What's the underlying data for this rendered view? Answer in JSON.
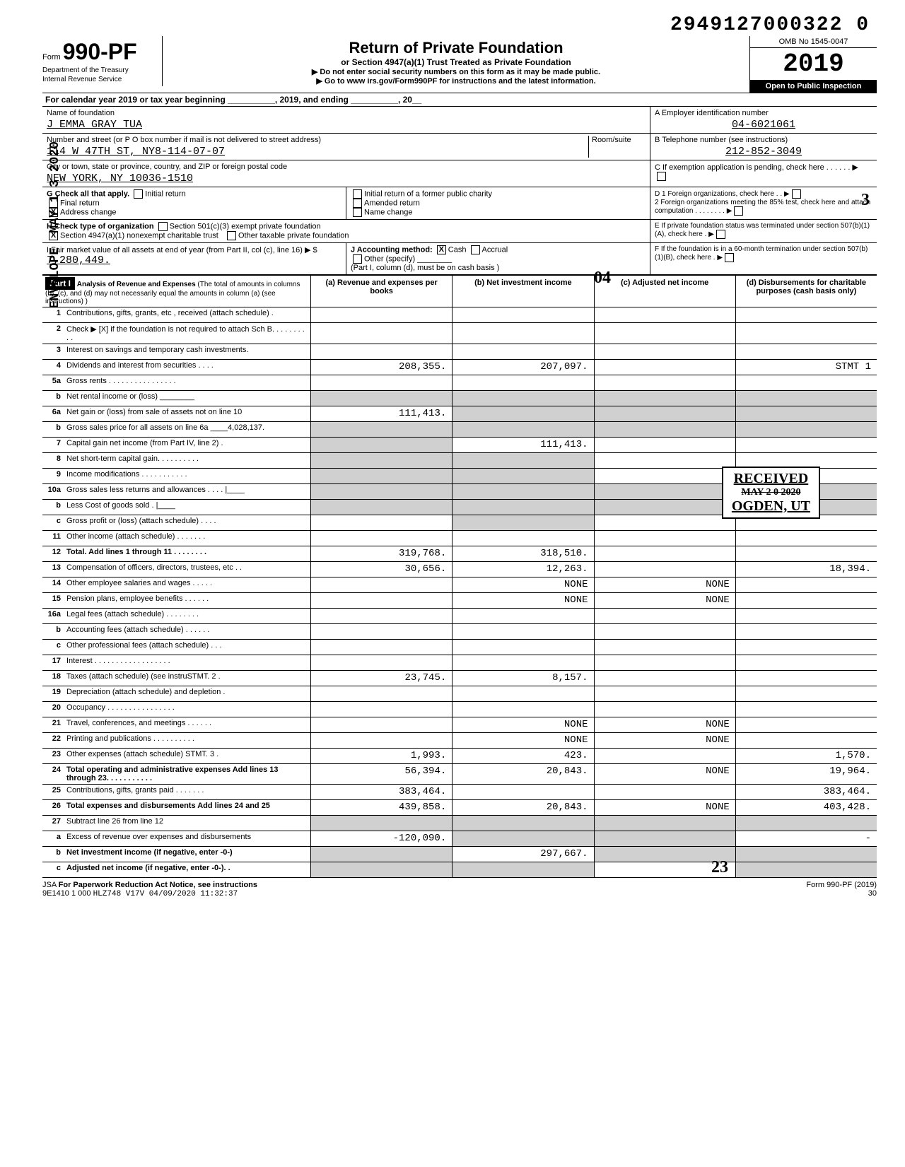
{
  "dln": "2949127000322 0",
  "form": {
    "prefix": "Form",
    "number": "990-PF",
    "dept1": "Department of the Treasury",
    "dept2": "Internal Revenue Service"
  },
  "title": {
    "main": "Return of Private Foundation",
    "sub1": "or Section 4947(a)(1) Trust Treated as Private Foundation",
    "sub2": "▶ Do not enter social security numbers on this form as it may be made public.",
    "sub3": "▶ Go to www irs.gov/Form990PF for instructions and the latest information."
  },
  "omb": "OMB No 1545-0047",
  "year": "2019",
  "inspection": "Open to Public Inspection",
  "cal_year": "For calendar year 2019 or tax year beginning __________, 2019, and ending __________, 20__",
  "foundation": {
    "name_label": "Name of foundation",
    "name": "J EMMA GRAY TUA",
    "addr_label": "Number and street (or P O box number if mail is not delivered to street address)",
    "room_label": "Room/suite",
    "addr": "114 W 47TH ST, NY8-114-07-07",
    "city_label": "City or town, state or province, country, and ZIP or foreign postal code",
    "city": "NEW YORK, NY 10036-1510"
  },
  "ein": {
    "label": "A  Employer identification number",
    "value": "04-6021061"
  },
  "phone": {
    "label": "B  Telephone number (see instructions)",
    "value": "212-852-3049"
  },
  "exemption": {
    "label": "C  If exemption application is pending, check here . . . . . . ▶"
  },
  "checks": {
    "g_label": "G Check all that apply.",
    "initial": "Initial return",
    "final": "Final return",
    "address": "Address change",
    "address_checked": "X",
    "initial_former": "Initial return of a former public charity",
    "amended": "Amended return",
    "name_change": "Name change",
    "h_label": "H Check type of organization",
    "sec501": "Section 501(c)(3) exempt private foundation",
    "sec4947": "Section 4947(a)(1) nonexempt charitable trust",
    "sec4947_checked": "X",
    "other_tax": "Other taxable private foundation",
    "i_label": "I  Fair market value of all assets at end of year (from Part II, col (c), line 16) ▶ $",
    "i_value": "7,280,449.",
    "j_label": "J Accounting method:",
    "cash": "Cash",
    "cash_checked": "X",
    "accrual": "Accrual",
    "other_spec": "Other (specify) ________",
    "j_note": "(Part I, column (d), must be on cash basis )",
    "d1": "D  1 Foreign organizations, check here . . ▶",
    "d2": "2 Foreign organizations meeting the 85% test, check here and attach computation . . . . . . . . ▶",
    "e": "E  If private foundation status was terminated under section 507(b)(1)(A), check here . ▶",
    "f": "F  If the foundation is in a 60-month termination under section 507(b)(1)(B), check here . ▶"
  },
  "part1": {
    "label": "Part I",
    "title": "Analysis of Revenue and Expenses",
    "note": "(The total of amounts in columns (b), (c), and (d) may not necessarily equal the amounts in column (a) (see instructions) )",
    "col_a": "(a) Revenue and expenses per books",
    "col_b": "(b) Net investment income",
    "col_c": "(c) Adjusted net income",
    "col_d": "(d) Disbursements for charitable purposes (cash basis only)"
  },
  "rows": [
    {
      "n": "1",
      "label": "Contributions, gifts, grants, etc , received (attach schedule) .",
      "a": "",
      "b": "",
      "c": "",
      "d": ""
    },
    {
      "n": "2",
      "label": "Check ▶ [X] if the foundation is not required to attach Sch B. . . . . . . . . .",
      "a": "",
      "b": "",
      "c": "",
      "d": ""
    },
    {
      "n": "3",
      "label": "Interest on savings and temporary cash investments.",
      "a": "",
      "b": "",
      "c": "",
      "d": ""
    },
    {
      "n": "4",
      "label": "Dividends and interest from securities . . . .",
      "a": "208,355.",
      "b": "207,097.",
      "c": "",
      "d": "STMT 1"
    },
    {
      "n": "5a",
      "label": "Gross rents . . . . . . . . . . . . . . . .",
      "a": "",
      "b": "",
      "c": "",
      "d": ""
    },
    {
      "n": "b",
      "label": "Net rental income or (loss) ________",
      "a": "",
      "b": "",
      "c": "",
      "d": "",
      "shaded_all": true
    },
    {
      "n": "6a",
      "label": "Net gain or (loss) from sale of assets not on line 10",
      "a": "111,413.",
      "b": "",
      "c": "",
      "d": "",
      "shaded_bcd": true
    },
    {
      "n": "b",
      "label": "Gross sales price for all assets on line 6a ____4,028,137.",
      "a": "",
      "b": "",
      "c": "",
      "d": "",
      "shaded_all": true
    },
    {
      "n": "7",
      "label": "Capital gain net income (from Part IV, line 2) .",
      "a": "",
      "b": "111,413.",
      "c": "",
      "d": "",
      "shaded_a": true
    },
    {
      "n": "8",
      "label": "Net short-term capital gain. . . . . . . . . .",
      "a": "",
      "b": "",
      "c": "",
      "d": "",
      "shaded_ab": true
    },
    {
      "n": "9",
      "label": "Income modifications . . . . . . . . . . .",
      "a": "",
      "b": "",
      "c": "",
      "d": "",
      "shaded_ab": true
    },
    {
      "n": "10a",
      "label": "Gross sales less returns and allowances . . . . |____",
      "a": "",
      "b": "",
      "c": "",
      "d": "",
      "shaded_all": true
    },
    {
      "n": "b",
      "label": "Less Cost of goods sold . |____",
      "a": "",
      "b": "",
      "c": "",
      "d": "",
      "shaded_all": true
    },
    {
      "n": "c",
      "label": "Gross profit or (loss) (attach schedule) . . . .",
      "a": "",
      "b": "",
      "c": "",
      "d": "",
      "shaded_b": true
    },
    {
      "n": "11",
      "label": "Other income (attach schedule) . . . . . . .",
      "a": "",
      "b": "",
      "c": "",
      "d": ""
    },
    {
      "n": "12",
      "label": "Total. Add lines 1 through 11 . . . . . . . .",
      "a": "319,768.",
      "b": "318,510.",
      "c": "",
      "d": "",
      "bold": true
    },
    {
      "n": "13",
      "label": "Compensation of officers, directors, trustees, etc . .",
      "a": "30,656.",
      "b": "12,263.",
      "c": "",
      "d": "18,394."
    },
    {
      "n": "14",
      "label": "Other employee salaries and wages . . . . .",
      "a": "",
      "b": "NONE",
      "c": "NONE",
      "d": ""
    },
    {
      "n": "15",
      "label": "Pension plans, employee benefits . . . . . .",
      "a": "",
      "b": "NONE",
      "c": "NONE",
      "d": ""
    },
    {
      "n": "16a",
      "label": "Legal fees (attach schedule) . . . . . . . .",
      "a": "",
      "b": "",
      "c": "",
      "d": ""
    },
    {
      "n": "b",
      "label": "Accounting fees (attach schedule) . . . . . .",
      "a": "",
      "b": "",
      "c": "",
      "d": ""
    },
    {
      "n": "c",
      "label": "Other professional fees (attach schedule) . . .",
      "a": "",
      "b": "",
      "c": "",
      "d": ""
    },
    {
      "n": "17",
      "label": "Interest . . . . . . . . . . . . . . . . . .",
      "a": "",
      "b": "",
      "c": "",
      "d": ""
    },
    {
      "n": "18",
      "label": "Taxes (attach schedule) (see instruSTMT. 2 .",
      "a": "23,745.",
      "b": "8,157.",
      "c": "",
      "d": ""
    },
    {
      "n": "19",
      "label": "Depreciation (attach schedule) and depletion .",
      "a": "",
      "b": "",
      "c": "",
      "d": ""
    },
    {
      "n": "20",
      "label": "Occupancy . . . . . . . . . . . . . . . .",
      "a": "",
      "b": "",
      "c": "",
      "d": ""
    },
    {
      "n": "21",
      "label": "Travel, conferences, and meetings . . . . . .",
      "a": "",
      "b": "NONE",
      "c": "NONE",
      "d": ""
    },
    {
      "n": "22",
      "label": "Printing and publications . . . . . . . . . .",
      "a": "",
      "b": "NONE",
      "c": "NONE",
      "d": ""
    },
    {
      "n": "23",
      "label": "Other expenses (attach schedule) STMT. 3 .",
      "a": "1,993.",
      "b": "423.",
      "c": "",
      "d": "1,570."
    },
    {
      "n": "24",
      "label": "Total operating and administrative expenses Add lines 13 through 23. . . . . . . . . . .",
      "a": "56,394.",
      "b": "20,843.",
      "c": "NONE",
      "d": "19,964.",
      "bold": true
    },
    {
      "n": "25",
      "label": "Contributions, gifts, grants paid . . . . . . .",
      "a": "383,464.",
      "b": "",
      "c": "",
      "d": "383,464."
    },
    {
      "n": "26",
      "label": "Total expenses and disbursements Add lines 24 and 25",
      "a": "439,858.",
      "b": "20,843.",
      "c": "NONE",
      "d": "403,428.",
      "bold": true
    },
    {
      "n": "27",
      "label": "Subtract line 26 from line 12",
      "a": "",
      "b": "",
      "c": "",
      "d": "",
      "shaded_all": true
    },
    {
      "n": "a",
      "label": "Excess of revenue over expenses and disbursements",
      "a": "-120,090.",
      "b": "",
      "c": "",
      "d": "-",
      "shaded_bc": true
    },
    {
      "n": "b",
      "label": "Net investment income (if negative, enter -0-)",
      "a": "",
      "b": "297,667.",
      "c": "",
      "d": "",
      "bold": true,
      "shaded_acd": true
    },
    {
      "n": "c",
      "label": "Adjusted net income (if negative, enter -0-). .",
      "a": "",
      "b": "",
      "c": "",
      "d": "",
      "bold": true,
      "shaded_abd": true
    }
  ],
  "footer": {
    "jsa": "JSA",
    "paperwork": "For Paperwork Reduction Act Notice, see instructions",
    "code": "9E1410 1 000",
    "stamp": "HLZ748 V17V 04/09/2020 11:32:37",
    "form_ref": "Form 990-PF (2019)",
    "page": "30"
  },
  "stamps": {
    "received": "RECEIVED",
    "may": "MAY 2 0 2020",
    "ogden": "OGDEN, UT",
    "hw_04": "04",
    "hw_3": "3",
    "hw_23": "23"
  },
  "side_text": {
    "envelope": "ENVELOPE",
    "postmark": "POSTMARK DATE",
    "may13": "MAY 1 3 2020",
    "scanned": "SCANNED NOV. 0 3 2020",
    "aug": "AUG 5 7 2020",
    "revenue": "Revenue",
    "expenses": "Operating and Administrative Expenses"
  }
}
